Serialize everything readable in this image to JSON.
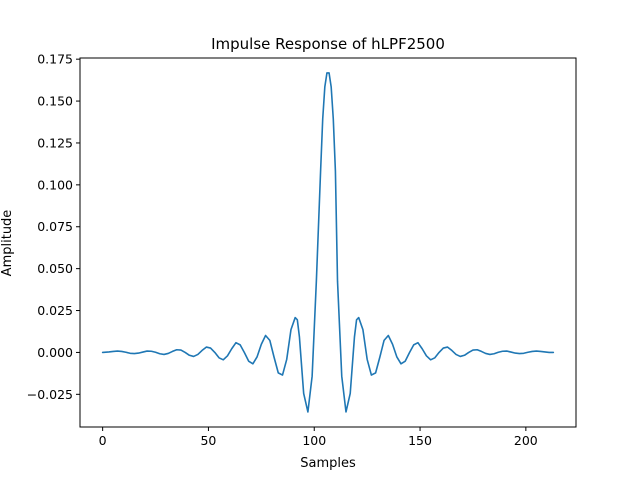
{
  "chart_data": {
    "type": "line",
    "title": "Impulse Response of hLPF2500",
    "xlabel": "Samples",
    "ylabel": "Amplitude",
    "xlim": [
      -10.7,
      223.7
    ],
    "ylim": [
      -0.0445,
      0.1757
    ],
    "xticks": [
      0,
      50,
      100,
      150,
      200
    ],
    "xtick_labels": [
      "0",
      "50",
      "100",
      "150",
      "200"
    ],
    "yticks": [
      -0.025,
      0.0,
      0.025,
      0.05,
      0.075,
      0.1,
      0.125,
      0.15,
      0.175
    ],
    "ytick_labels": [
      "−0.025",
      "0.000",
      "0.025",
      "0.050",
      "0.075",
      "0.100",
      "0.125",
      "0.150",
      "0.175"
    ],
    "grid": false,
    "legend": "none",
    "line_color": "#1f77b4",
    "series": [
      {
        "x": [
          0,
          3,
          5,
          7,
          9,
          11,
          13,
          15,
          17,
          19,
          21,
          23,
          25,
          27,
          29,
          31,
          33,
          35,
          37,
          39,
          41,
          43,
          45,
          47,
          49,
          51,
          53,
          55,
          57,
          59,
          61,
          63,
          65,
          67,
          69,
          71,
          73,
          75,
          77,
          79,
          81,
          83,
          85,
          87,
          89,
          91,
          92,
          93,
          95,
          97,
          99,
          101,
          103,
          104,
          105,
          106,
          107,
          108,
          109,
          110,
          111,
          113,
          115,
          117,
          119,
          120,
          121,
          123,
          125,
          127,
          129,
          131,
          133,
          135,
          137,
          139,
          141,
          143,
          145,
          147,
          149,
          151,
          153,
          155,
          157,
          159,
          161,
          163,
          165,
          167,
          169,
          171,
          173,
          175,
          177,
          179,
          181,
          183,
          185,
          187,
          189,
          191,
          193,
          195,
          197,
          199,
          201,
          203,
          205,
          207,
          209,
          211,
          213
        ],
        "y": [
          0.0,
          0.0003,
          0.0006,
          0.0008,
          0.0006,
          0.0001,
          -0.0005,
          -0.0007,
          -0.0004,
          0.0002,
          0.0008,
          0.0007,
          0.0001,
          -0.0008,
          -0.0012,
          -0.0006,
          0.0006,
          0.0016,
          0.0014,
          0.0,
          -0.0017,
          -0.0024,
          -0.0012,
          0.0012,
          0.0032,
          0.0026,
          0.0,
          -0.0032,
          -0.0044,
          -0.002,
          0.0022,
          0.0058,
          0.0045,
          -0.0001,
          -0.0052,
          -0.0068,
          -0.0026,
          0.0049,
          0.0101,
          0.0072,
          -0.0028,
          -0.0122,
          -0.0135,
          -0.0041,
          0.0136,
          0.0208,
          0.0195,
          0.0092,
          -0.0245,
          -0.0355,
          -0.0142,
          0.0425,
          0.1082,
          0.1393,
          0.1585,
          0.1668,
          0.1668,
          0.1585,
          0.1393,
          0.1082,
          0.0425,
          -0.0142,
          -0.0355,
          -0.0245,
          0.0092,
          0.0195,
          0.0208,
          0.0136,
          -0.0041,
          -0.0135,
          -0.0122,
          -0.0028,
          0.0072,
          0.0101,
          0.0049,
          -0.0026,
          -0.0068,
          -0.0052,
          -0.0001,
          0.0045,
          0.0058,
          0.0022,
          -0.002,
          -0.0044,
          -0.0032,
          0.0,
          0.0026,
          0.0032,
          0.0012,
          -0.0012,
          -0.0024,
          -0.0017,
          0.0,
          0.0014,
          0.0016,
          0.0006,
          -0.0006,
          -0.0012,
          -0.0008,
          0.0001,
          0.0007,
          0.0008,
          0.0002,
          -0.0004,
          -0.0007,
          -0.0005,
          0.0001,
          0.0006,
          0.0008,
          0.0006,
          0.0003,
          0.0,
          0.0
        ]
      }
    ]
  }
}
